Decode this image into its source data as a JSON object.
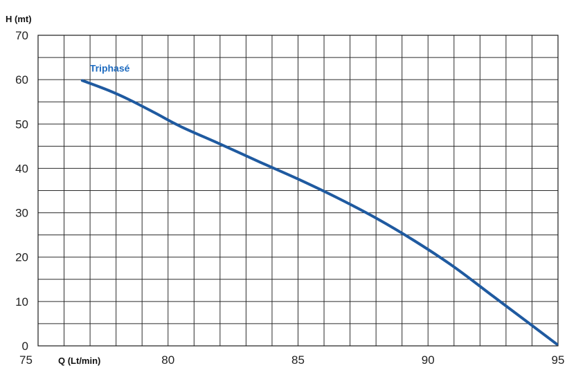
{
  "chart_data": {
    "type": "line",
    "ylabel": "H (mt)",
    "xlabel": "Q (Lt/min)",
    "xlim": [
      75,
      95
    ],
    "ylim": [
      0,
      70
    ],
    "x_ticks": [
      "75",
      "80",
      "85",
      "90",
      "95"
    ],
    "y_ticks": [
      "0",
      "10",
      "20",
      "30",
      "40",
      "50",
      "60",
      "70"
    ],
    "grid": true,
    "grid_x_step": 1,
    "grid_y_step": 5,
    "series": [
      {
        "name": "Triphasé",
        "color": "#1f5aa0",
        "x": [
          76.7,
          77.7,
          78.5,
          79.5,
          80.5,
          82.0,
          83.5,
          85.0,
          86.5,
          88.0,
          89.5,
          91.0,
          92.5,
          94.0,
          94.95
        ],
        "y": [
          59.8,
          57.6,
          55.5,
          52.5,
          49.4,
          45.5,
          41.5,
          37.6,
          33.4,
          28.8,
          23.6,
          17.8,
          11.2,
          4.6,
          0.4
        ]
      }
    ],
    "series_label_color": "#1f6cc0"
  }
}
